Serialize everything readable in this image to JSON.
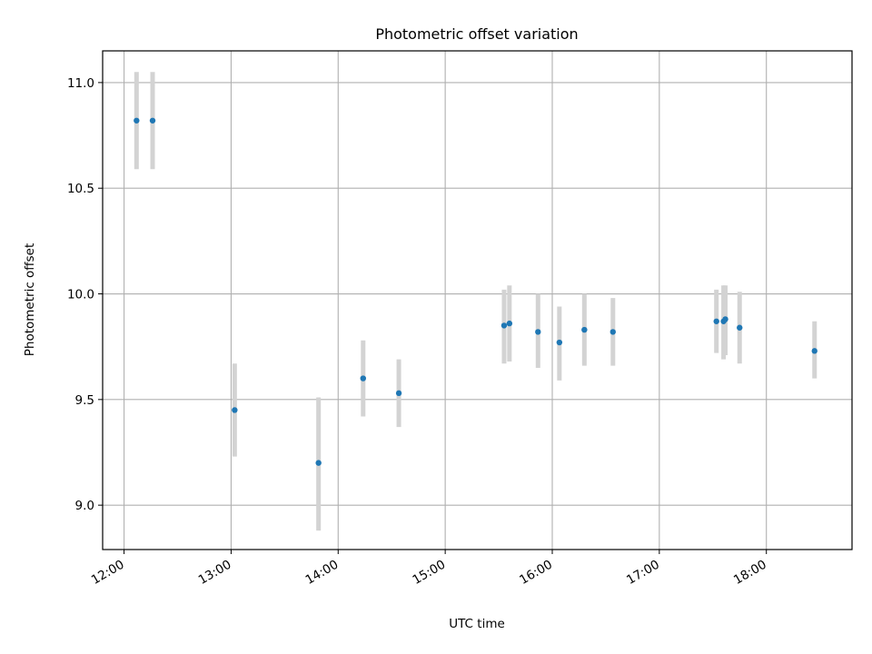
{
  "chart_data": {
    "type": "scatter",
    "title": "Photometric offset variation",
    "xlabel": "UTC time",
    "ylabel": "Photometric offset",
    "x_ticks": [
      "12:00",
      "13:00",
      "14:00",
      "15:00",
      "16:00",
      "17:00",
      "18:00"
    ],
    "y_ticks": [
      "9.0",
      "9.5",
      "10.0",
      "10.5",
      "11.0"
    ],
    "xlim": [
      "11:48",
      "18:48"
    ],
    "ylim": [
      8.79,
      11.15
    ],
    "grid": true,
    "marker_color": "#1f77b4",
    "errorbar_color": "#d3d3d3",
    "points": [
      {
        "x": "12:07",
        "y": 10.82,
        "err_low": 10.59,
        "err_high": 11.05
      },
      {
        "x": "12:16",
        "y": 10.82,
        "err_low": 10.59,
        "err_high": 11.05
      },
      {
        "x": "13:02",
        "y": 9.45,
        "err_low": 9.23,
        "err_high": 9.67
      },
      {
        "x": "13:49",
        "y": 9.2,
        "err_low": 8.88,
        "err_high": 9.51
      },
      {
        "x": "14:14",
        "y": 9.6,
        "err_low": 9.42,
        "err_high": 9.78
      },
      {
        "x": "14:34",
        "y": 9.53,
        "err_low": 9.37,
        "err_high": 9.69
      },
      {
        "x": "15:33",
        "y": 9.85,
        "err_low": 9.67,
        "err_high": 10.02
      },
      {
        "x": "15:36",
        "y": 9.86,
        "err_low": 9.68,
        "err_high": 10.04
      },
      {
        "x": "15:52",
        "y": 9.82,
        "err_low": 9.65,
        "err_high": 10.0
      },
      {
        "x": "16:04",
        "y": 9.77,
        "err_low": 9.59,
        "err_high": 9.94
      },
      {
        "x": "16:18",
        "y": 9.83,
        "err_low": 9.66,
        "err_high": 10.0
      },
      {
        "x": "16:34",
        "y": 9.82,
        "err_low": 9.66,
        "err_high": 9.98
      },
      {
        "x": "17:32",
        "y": 9.87,
        "err_low": 9.72,
        "err_high": 10.02
      },
      {
        "x": "17:36",
        "y": 9.87,
        "err_low": 9.69,
        "err_high": 10.04
      },
      {
        "x": "17:37",
        "y": 9.88,
        "err_low": 9.71,
        "err_high": 10.04
      },
      {
        "x": "17:45",
        "y": 9.84,
        "err_low": 9.67,
        "err_high": 10.01
      },
      {
        "x": "18:27",
        "y": 9.73,
        "err_low": 9.6,
        "err_high": 9.87
      }
    ]
  }
}
